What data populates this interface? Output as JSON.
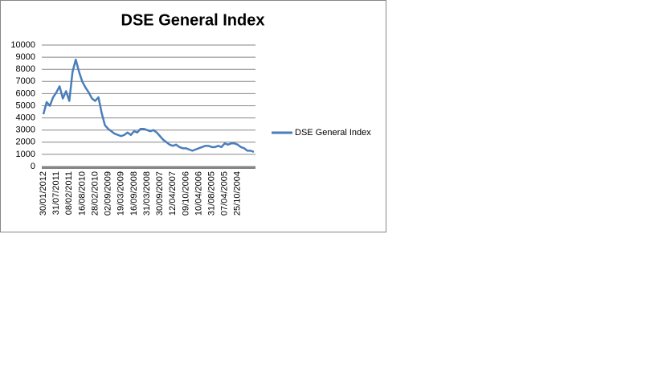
{
  "chart_data": {
    "type": "line",
    "title": "DSE General Index",
    "categories": [
      "30/01/2012",
      null,
      null,
      null,
      "31/07/2011",
      null,
      null,
      null,
      "08/02/2011",
      null,
      null,
      null,
      "16/08/2010",
      null,
      null,
      null,
      "28/02/2010",
      null,
      null,
      null,
      "02/09/2009",
      null,
      null,
      null,
      "19/03/2009",
      null,
      null,
      null,
      "16/09/2008",
      null,
      null,
      null,
      "31/03/2008",
      null,
      null,
      null,
      "30/09/2007",
      null,
      null,
      null,
      "12/04/2007",
      null,
      null,
      null,
      "09/10/2006",
      null,
      null,
      null,
      "10/04/2006",
      null,
      null,
      null,
      "31/08/2005",
      null,
      null,
      null,
      "07/04/2005",
      null,
      null,
      null,
      "25/10/2004",
      null,
      null,
      null,
      null,
      null
    ],
    "series": [
      {
        "name": "DSE General Index",
        "color": "#4a7ebb",
        "values": [
          4300,
          5300,
          5000,
          5700,
          6100,
          6600,
          5600,
          6200,
          5400,
          7800,
          8800,
          7800,
          7000,
          6500,
          6100,
          5600,
          5400,
          5700,
          4400,
          3400,
          3100,
          2900,
          2700,
          2600,
          2500,
          2600,
          2800,
          2600,
          2900,
          2800,
          3100,
          3100,
          3000,
          2900,
          3000,
          2800,
          2500,
          2200,
          2000,
          1800,
          1700,
          1800,
          1600,
          1500,
          1500,
          1400,
          1300,
          1400,
          1500,
          1600,
          1700,
          1700,
          1600,
          1600,
          1700,
          1600,
          1900,
          1800,
          1900,
          1900,
          1800,
          1600,
          1500,
          1300,
          1300,
          1200
        ]
      }
    ],
    "ylim": [
      0,
      10000
    ],
    "yticks": [
      0,
      1000,
      2000,
      3000,
      4000,
      5000,
      6000,
      7000,
      8000,
      9000,
      10000
    ],
    "grid": true,
    "legend": "right"
  }
}
